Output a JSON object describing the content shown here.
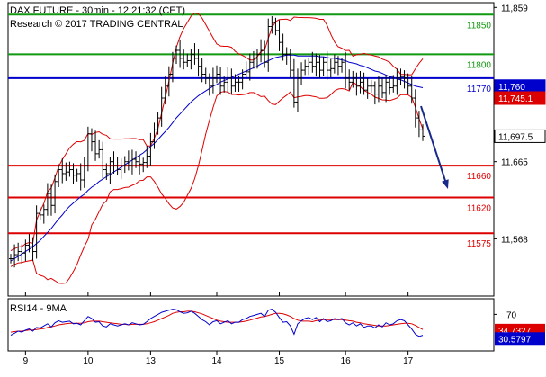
{
  "chart_data": {
    "type": "line",
    "title": "DAX FUTURE - 30min - 12:21:32 (CET)",
    "subtitle": "Research © 2017 TRADING CENTRAL",
    "x_tick_labels": [
      "9",
      "10",
      "13",
      "14",
      "15",
      "16",
      "17"
    ],
    "x_ticks_at_bar": [
      4,
      21,
      38,
      56,
      73,
      91,
      108
    ],
    "y_tick_labels": [
      {
        "label": "11,859",
        "value": 11859
      },
      {
        "label": "11,665",
        "value": 11665
      },
      {
        "label": "11,568",
        "value": 11568
      }
    ],
    "ylim": [
      11496,
      11865
    ],
    "levels": [
      {
        "label": "11850",
        "value": 11850,
        "color": "#119911"
      },
      {
        "label": "11800",
        "value": 11800,
        "color": "#119911"
      },
      {
        "label": "11770",
        "value": 11770,
        "color": "#0000cc"
      },
      {
        "label": "11660",
        "value": 11660,
        "color": "#dd0000"
      },
      {
        "label": "11620",
        "value": 11620,
        "color": "#dd0000"
      },
      {
        "label": "11575",
        "value": 11575,
        "color": "#dd0000"
      }
    ],
    "price_tags": [
      {
        "label": "11,760",
        "value": 11760,
        "bg": "#0000cc",
        "fg": "#ffffff"
      },
      {
        "label": "11,745.1",
        "value": 11745,
        "bg": "#dd0000",
        "fg": "#ffffff"
      },
      {
        "label": "11,697.5",
        "value": 11697,
        "bg": "#ffffff",
        "fg": "#000000"
      }
    ],
    "close_series": [
      11543,
      11548,
      11552,
      11550,
      11560,
      11558,
      11552,
      11600,
      11598,
      11605,
      11625,
      11610,
      11640,
      11655,
      11650,
      11652,
      11655,
      11648,
      11650,
      11642,
      11660,
      11700,
      11690,
      11675,
      11680,
      11655,
      11650,
      11665,
      11660,
      11655,
      11660,
      11665,
      11660,
      11668,
      11665,
      11662,
      11664,
      11672,
      11690,
      11705,
      11720,
      11745,
      11760,
      11775,
      11795,
      11805,
      11795,
      11790,
      11792,
      11800,
      11795,
      11785,
      11775,
      11770,
      11760,
      11770,
      11775,
      11760,
      11765,
      11770,
      11760,
      11765,
      11765,
      11775,
      11778,
      11790,
      11795,
      11800,
      11805,
      11790,
      11835,
      11840,
      11830,
      11815,
      11800,
      11800,
      11780,
      11740,
      11770,
      11780,
      11785,
      11790,
      11785,
      11790,
      11780,
      11790,
      11780,
      11782,
      11790,
      11785,
      11790,
      11770,
      11765,
      11770,
      11760,
      11765,
      11755,
      11760,
      11760,
      11750,
      11760,
      11752,
      11765,
      11758,
      11760,
      11770,
      11772,
      11770,
      11760,
      11745,
      11720,
      11705,
      11697
    ],
    "ma_series": [
      11540,
      11543,
      11546,
      11549,
      11552,
      11555,
      11558,
      11562,
      11566,
      11571,
      11576,
      11581,
      11587,
      11593,
      11598,
      11604,
      11609,
      11613,
      11617,
      11621,
      11624,
      11629,
      11633,
      11636,
      11640,
      11643,
      11646,
      11649,
      11652,
      11655,
      11658,
      11661,
      11664,
      11667,
      11670,
      11673,
      11676,
      11680,
      11684,
      11688,
      11693,
      11698,
      11703,
      11708,
      11714,
      11720,
      11725,
      11730,
      11735,
      11740,
      11744,
      11748,
      11751,
      11754,
      11757,
      11760,
      11762,
      11765,
      11767,
      11769,
      11771,
      11773,
      11775,
      11777,
      11779,
      11781,
      11783,
      11785,
      11788,
      11790,
      11792,
      11794,
      11796,
      11797,
      11798,
      11799,
      11799,
      11799,
      11798,
      11798,
      11798,
      11798,
      11798,
      11798,
      11797,
      11797,
      11796,
      11795,
      11795,
      11794,
      11793,
      11792,
      11790,
      11789,
      11788,
      11786,
      11785,
      11783,
      11781,
      11779,
      11778,
      11776,
      11774,
      11772,
      11771,
      11769,
      11768,
      11766,
      11764,
      11762,
      11760,
      11759,
      11758
    ],
    "rsi": {
      "title": "RSI14 - 9MA",
      "tick_label": "70",
      "level_values": [
        34.7327,
        30.5797
      ],
      "level_labels": [
        "34.7327",
        "30.5797"
      ],
      "rsi_series": [
        30,
        34,
        38,
        36,
        40,
        42,
        38,
        45,
        44,
        48,
        52,
        46,
        54,
        58,
        55,
        56,
        57,
        52,
        53,
        50,
        58,
        66,
        62,
        55,
        56,
        48,
        46,
        52,
        50,
        48,
        50,
        52,
        50,
        54,
        52,
        50,
        51,
        56,
        62,
        66,
        70,
        74,
        76,
        78,
        80,
        79,
        75,
        72,
        73,
        76,
        72,
        66,
        60,
        56,
        50,
        56,
        58,
        52,
        55,
        58,
        52,
        55,
        55,
        60,
        62,
        66,
        68,
        70,
        72,
        66,
        78,
        80,
        74,
        64,
        55,
        56,
        48,
        32,
        52,
        58,
        62,
        64,
        60,
        64,
        56,
        62,
        56,
        58,
        62,
        60,
        62,
        54,
        50,
        54,
        48,
        52,
        45,
        48,
        48,
        44,
        50,
        46,
        54,
        50,
        52,
        58,
        60,
        58,
        50,
        42,
        32,
        28,
        30
      ],
      "ma_series": [
        36,
        37,
        38,
        38,
        39,
        40,
        40,
        41,
        42,
        43,
        45,
        46,
        48,
        50,
        51,
        52,
        53,
        53,
        53,
        53,
        54,
        56,
        57,
        57,
        57,
        56,
        55,
        54,
        53,
        52,
        51,
        51,
        50,
        51,
        51,
        51,
        51,
        52,
        54,
        56,
        59,
        62,
        65,
        68,
        72,
        74,
        75,
        75,
        76,
        76,
        75,
        73,
        71,
        68,
        65,
        62,
        59,
        57,
        56,
        55,
        55,
        55,
        55,
        56,
        57,
        59,
        61,
        63,
        65,
        66,
        68,
        70,
        72,
        72,
        71,
        69,
        66,
        62,
        59,
        57,
        57,
        57,
        56,
        58,
        59,
        60,
        60,
        60,
        60,
        60,
        60,
        59,
        58,
        57,
        55,
        54,
        52,
        51,
        50,
        49,
        48,
        48,
        48,
        49,
        50,
        51,
        52,
        53,
        53,
        52,
        49,
        45,
        41
      ]
    },
    "annotation": {
      "type": "arrow",
      "direction": "down",
      "color": "#1a2a8a"
    }
  }
}
